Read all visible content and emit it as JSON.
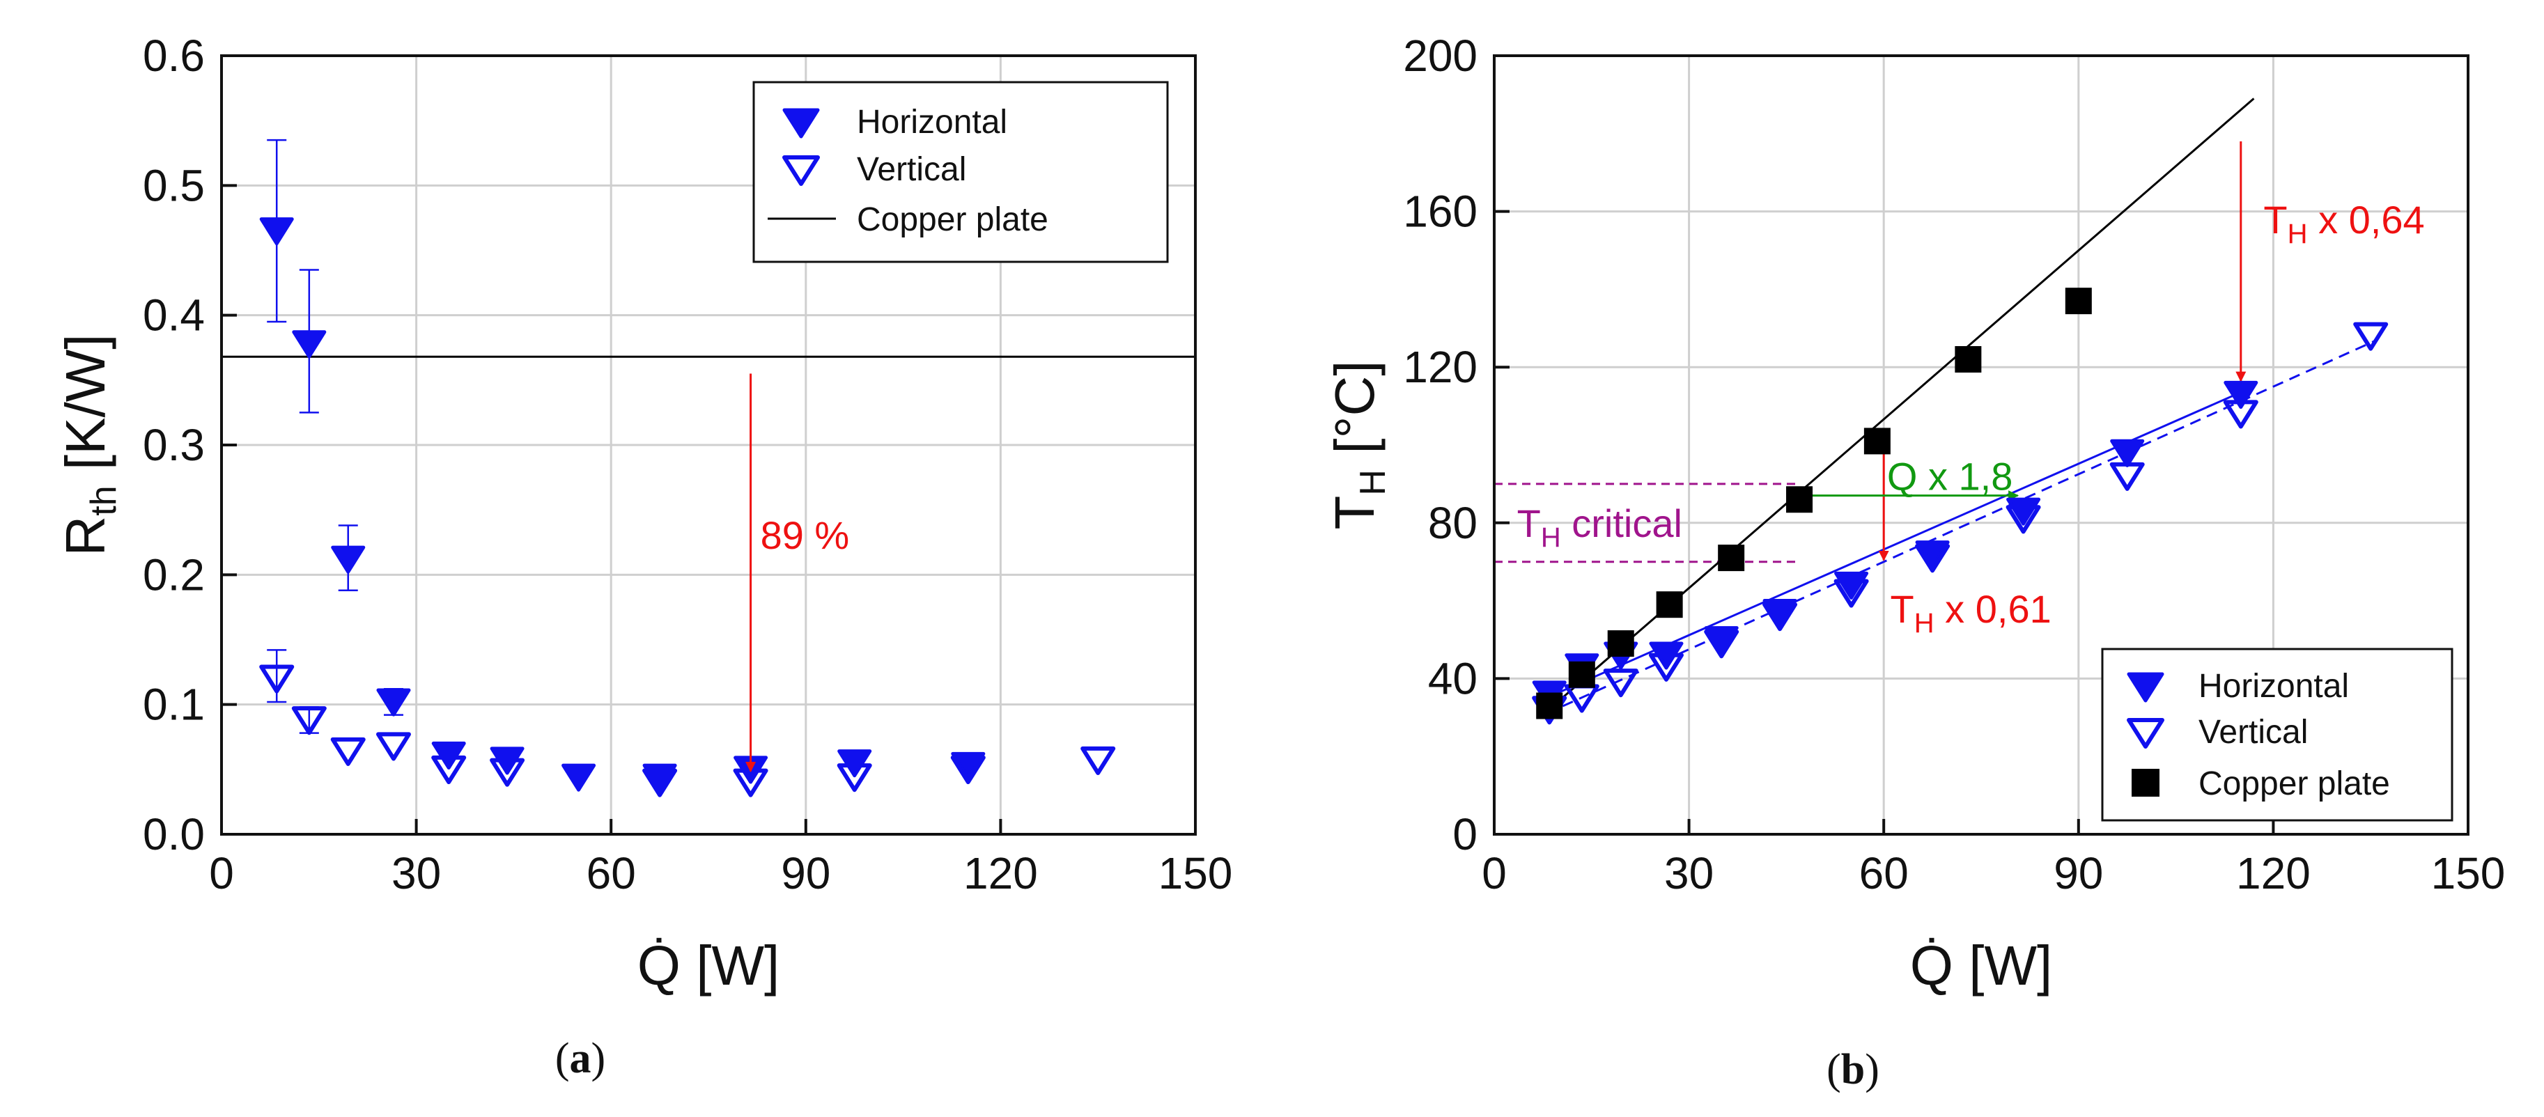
{
  "chart_data": [
    {
      "id": "a",
      "type": "scatter",
      "caption": {
        "open": "(",
        "letter": "a",
        "close": ")"
      },
      "xlabel": "Q̇ [W]",
      "ylabel": {
        "main": "R",
        "sub": "th",
        "unit": " [K/W]"
      },
      "xlim": [
        0,
        150
      ],
      "ylim": [
        0,
        0.6
      ],
      "xticks": [
        "0",
        "30",
        "60",
        "90",
        "120",
        "150"
      ],
      "yticks": [
        "0.0",
        "0.1",
        "0.2",
        "0.3",
        "0.4",
        "0.5",
        "0.6"
      ],
      "grid": true,
      "legend_position": "top-right",
      "series": [
        {
          "name": "Horizontal",
          "marker": "filled-down-triangle",
          "color": "#1010ee",
          "points": [
            {
              "x": 8.5,
              "y": 0.465,
              "err_low": 0.395,
              "err_high": 0.535
            },
            {
              "x": 13.5,
              "y": 0.378,
              "err_low": 0.325,
              "err_high": 0.435
            },
            {
              "x": 19.5,
              "y": 0.212,
              "err_low": 0.188,
              "err_high": 0.238
            },
            {
              "x": 26.5,
              "y": 0.102,
              "err_low": 0.092,
              "err_high": 0.112
            },
            {
              "x": 35,
              "y": 0.061
            },
            {
              "x": 44,
              "y": 0.057
            },
            {
              "x": 55,
              "y": 0.044
            },
            {
              "x": 67.5,
              "y": 0.044
            },
            {
              "x": 81.5,
              "y": 0.05
            },
            {
              "x": 97.5,
              "y": 0.055
            },
            {
              "x": 115,
              "y": 0.053
            }
          ]
        },
        {
          "name": "Vertical",
          "marker": "open-down-triangle",
          "color": "#1010ee",
          "points": [
            {
              "x": 8.5,
              "y": 0.12,
              "err_low": 0.102,
              "err_high": 0.142
            },
            {
              "x": 13.5,
              "y": 0.088,
              "err_low": 0.078,
              "err_high": 0.098
            },
            {
              "x": 19.5,
              "y": 0.064
            },
            {
              "x": 26.5,
              "y": 0.068
            },
            {
              "x": 35,
              "y": 0.05
            },
            {
              "x": 44,
              "y": 0.048
            },
            {
              "x": 67.5,
              "y": 0.04
            },
            {
              "x": 81.5,
              "y": 0.04
            },
            {
              "x": 97.5,
              "y": 0.044
            },
            {
              "x": 115,
              "y": 0.05
            },
            {
              "x": 135,
              "y": 0.057
            }
          ]
        },
        {
          "name": "Copper plate",
          "type": "hline",
          "color": "#000000",
          "y": 0.368
        }
      ],
      "annotations": [
        {
          "text": "89 %",
          "color": "#ee1111",
          "arrow_x": 81.5,
          "arrow_from_y": 0.355,
          "arrow_to_y": 0.04
        }
      ]
    },
    {
      "id": "b",
      "type": "scatter",
      "caption": {
        "open": "(",
        "letter": "b",
        "close": ")"
      },
      "xlabel": "Q̇ [W]",
      "ylabel": {
        "main": "T",
        "sub": "H",
        "unit": " [°C]"
      },
      "xlim": [
        0,
        150
      ],
      "ylim": [
        0,
        200
      ],
      "xticks": [
        "0",
        "30",
        "60",
        "90",
        "120",
        "150"
      ],
      "yticks": [
        "0",
        "40",
        "80",
        "120",
        "160",
        "200"
      ],
      "grid": true,
      "legend_position": "bottom-right",
      "series": [
        {
          "name": "Horizontal",
          "marker": "filled-down-triangle",
          "color": "#1010ee",
          "points": [
            {
              "x": 8.5,
              "y": 36
            },
            {
              "x": 13.5,
              "y": 43
            },
            {
              "x": 19.5,
              "y": 46
            },
            {
              "x": 26.5,
              "y": 46
            },
            {
              "x": 35,
              "y": 50
            },
            {
              "x": 44,
              "y": 57
            },
            {
              "x": 55,
              "y": 64
            },
            {
              "x": 67.5,
              "y": 72
            },
            {
              "x": 81.5,
              "y": 83
            },
            {
              "x": 97.5,
              "y": 98
            },
            {
              "x": 115,
              "y": 113
            }
          ],
          "fit": {
            "x1": 8,
            "y1": 35,
            "x2": 117,
            "y2": 115,
            "style": "solid"
          }
        },
        {
          "name": "Vertical",
          "marker": "open-down-triangle",
          "color": "#1010ee",
          "points": [
            {
              "x": 8.5,
              "y": 32
            },
            {
              "x": 13.5,
              "y": 35
            },
            {
              "x": 19.5,
              "y": 39
            },
            {
              "x": 26.5,
              "y": 43
            },
            {
              "x": 35,
              "y": 49
            },
            {
              "x": 44,
              "y": 56
            },
            {
              "x": 55,
              "y": 62
            },
            {
              "x": 67.5,
              "y": 71
            },
            {
              "x": 81.5,
              "y": 81
            },
            {
              "x": 97.5,
              "y": 92
            },
            {
              "x": 115,
              "y": 108
            },
            {
              "x": 135,
              "y": 128
            }
          ],
          "fit": {
            "x1": 8,
            "y1": 31,
            "x2": 136,
            "y2": 127,
            "style": "dashed"
          }
        },
        {
          "name": "Copper plate",
          "marker": "filled-square",
          "color": "#000000",
          "points": [
            {
              "x": 8.5,
              "y": 33
            },
            {
              "x": 13.5,
              "y": 41
            },
            {
              "x": 19.5,
              "y": 49
            },
            {
              "x": 27,
              "y": 59
            },
            {
              "x": 36.5,
              "y": 71
            },
            {
              "x": 47,
              "y": 86
            },
            {
              "x": 59,
              "y": 101
            },
            {
              "x": 73,
              "y": 122
            },
            {
              "x": 90,
              "y": 137
            }
          ],
          "fit": {
            "x1": 7,
            "y1": 30,
            "x2": 117,
            "y2": 189,
            "style": "solid"
          }
        }
      ],
      "critical_band": {
        "y_low": 70,
        "y_high": 90,
        "x_start": 0,
        "x_end": 47,
        "color": "#a0148c"
      },
      "annotations": [
        {
          "id": "tcrit",
          "main": "T",
          "sub": "H",
          "rest": " critical",
          "color": "#a0148c",
          "x": 3.5,
          "y": 80
        },
        {
          "id": "t061",
          "main": "T",
          "sub": "H",
          "rest": " x 0,61",
          "color": "#ee1111",
          "x": 61,
          "y": 58,
          "arrow_x": 60,
          "arrow_from_y": 101,
          "arrow_to_y": 69
        },
        {
          "id": "t064",
          "main": "T",
          "sub": "H",
          "rest": " x 0,64",
          "color": "#ee1111",
          "x": 118.5,
          "y": 158,
          "arrow_x": 115,
          "arrow_from_y": 178,
          "arrow_to_y": 115
        },
        {
          "id": "qx18",
          "text": "Q x 1,8",
          "color": "#119911",
          "x": 60.5,
          "y": 92,
          "arrow_y": 87,
          "arrow_from_x": 47,
          "arrow_to_x": 81.5
        }
      ]
    }
  ]
}
